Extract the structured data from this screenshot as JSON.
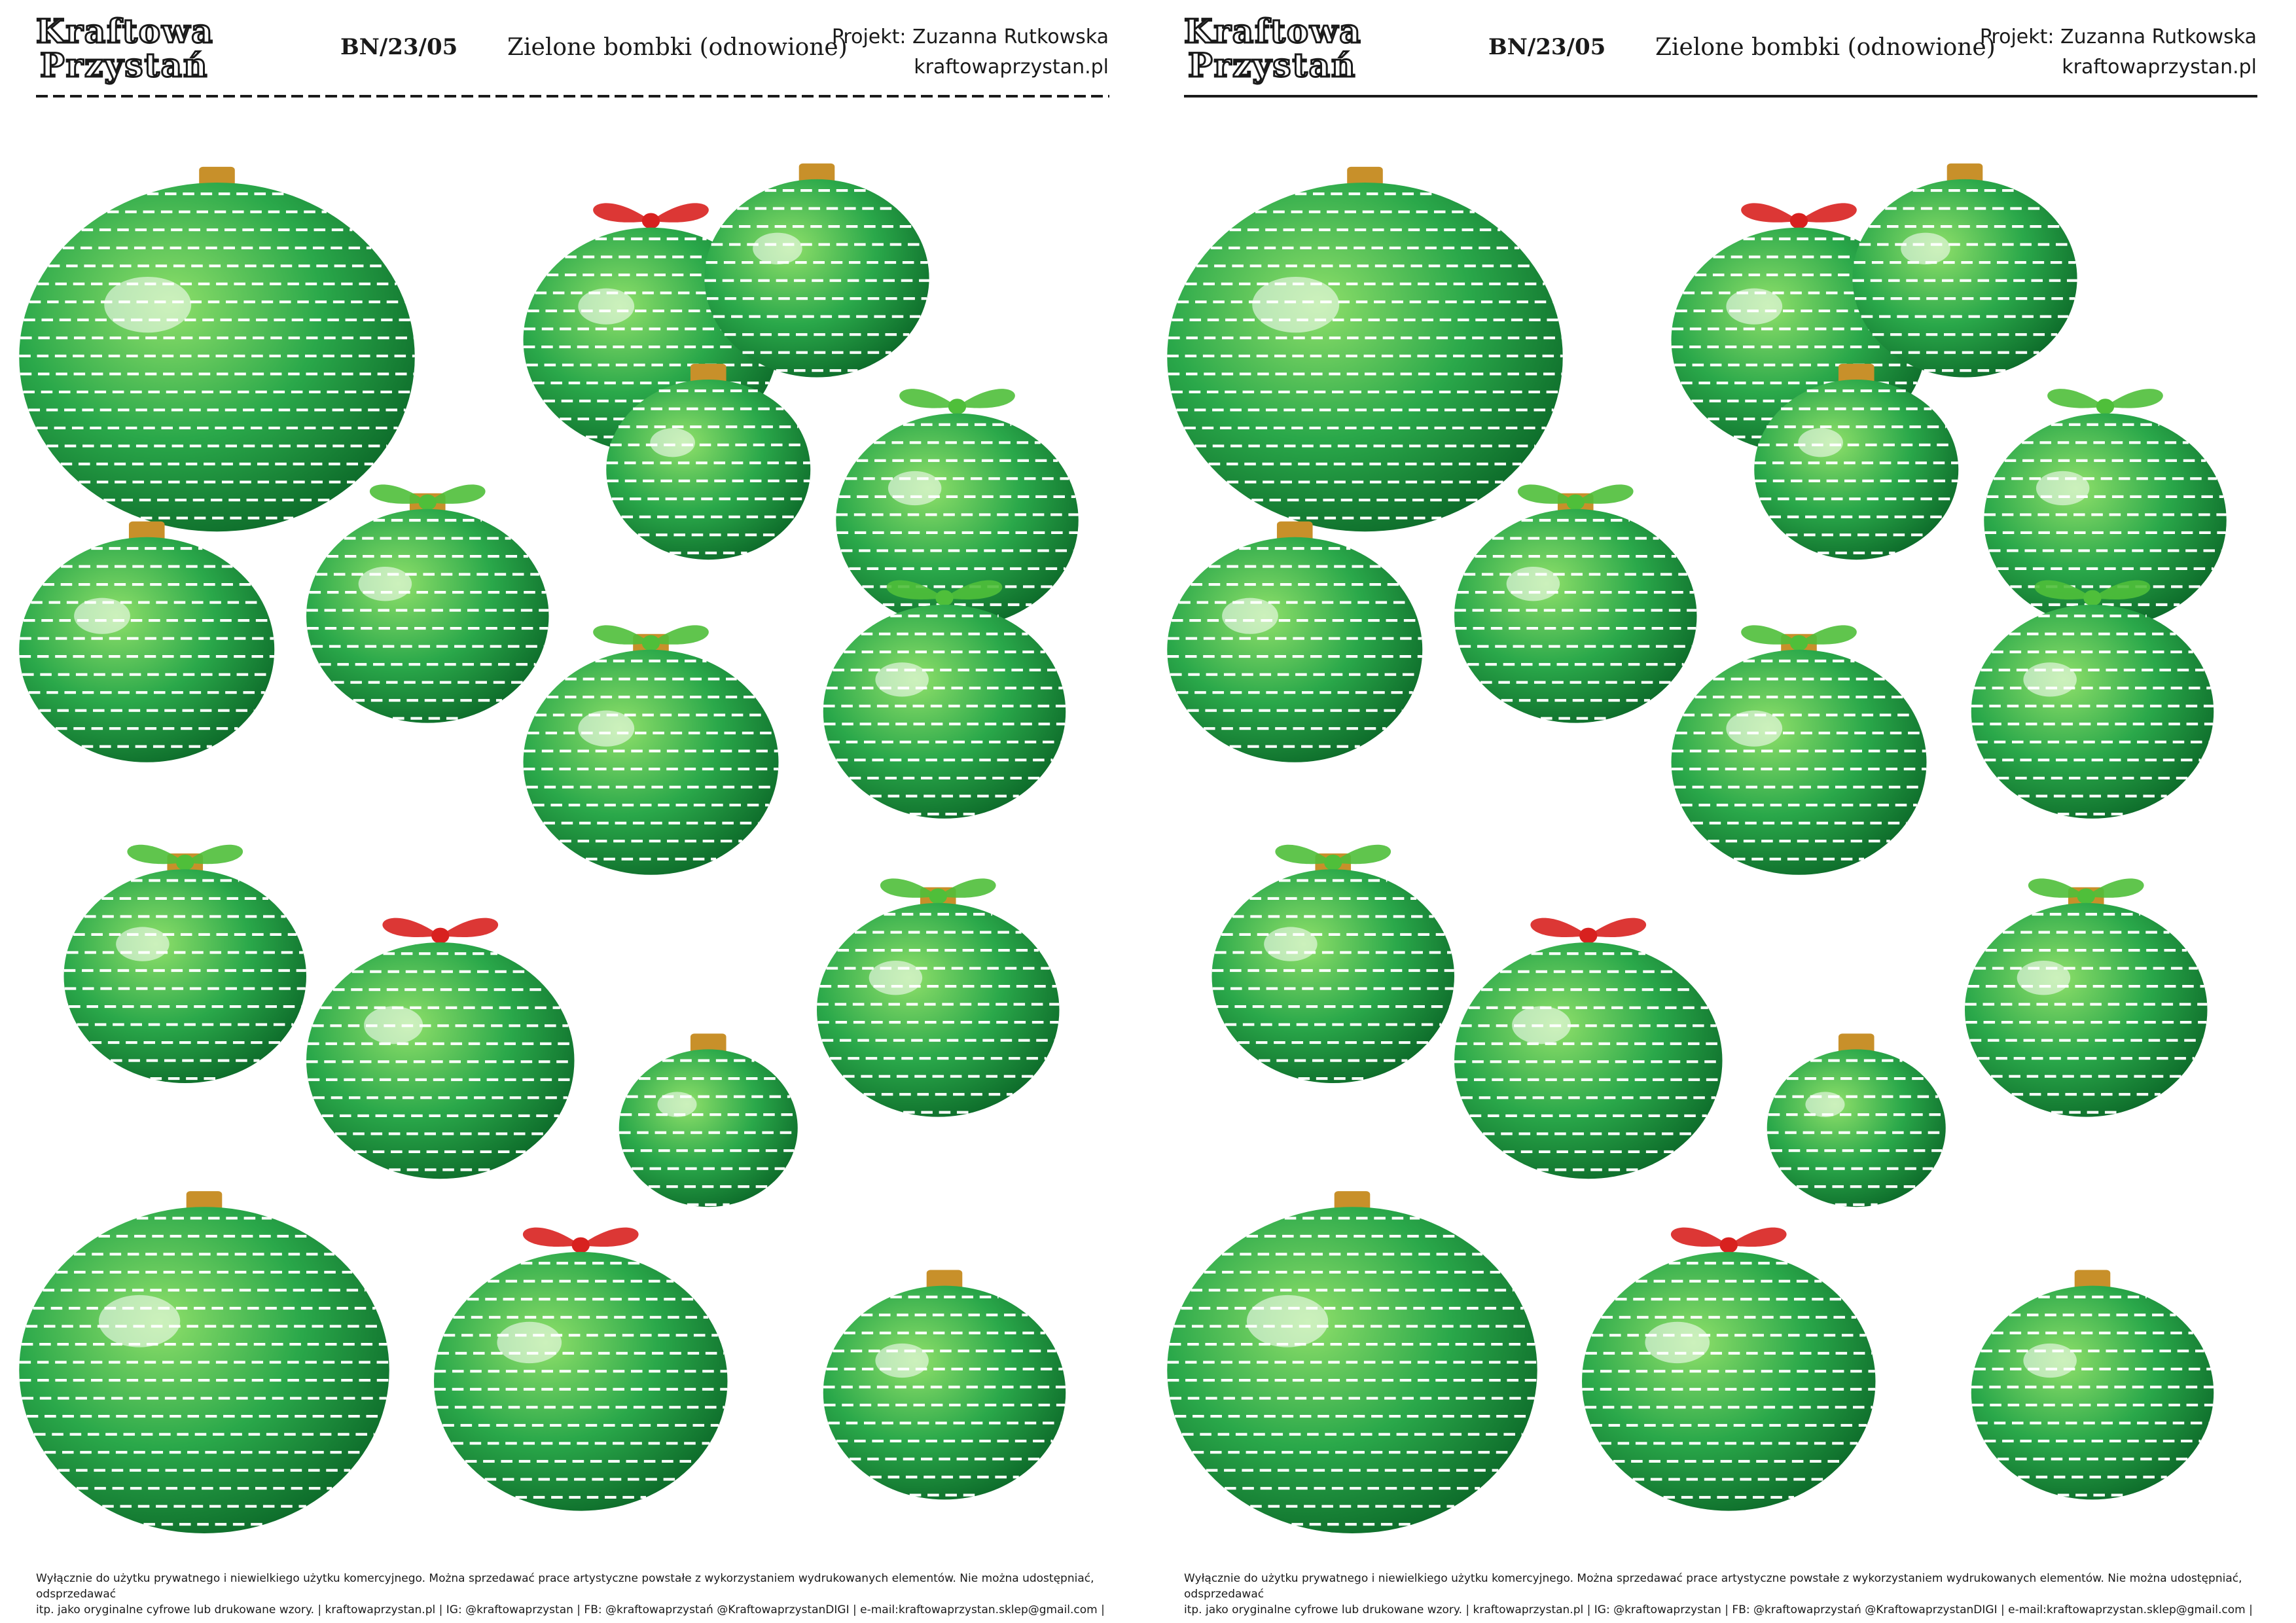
{
  "sheets": [
    {
      "logo": {
        "line1": "Kraftowa",
        "line2": "Przystań"
      },
      "code": "BN/23/05",
      "title": "Zielone bombki (odnowione)",
      "author": "Projekt: Zuzanna Rutkowska",
      "website": "kraftowaprzystan.pl",
      "footer_line1": "Wyłącznie do użytku prywatnego i niewielkiego użytku komercyjnego. Można sprzedawać prace artystyczne powstałe z wykorzystaniem wydrukowanych elementów. Nie można udostępniać, odsprzedawać",
      "footer_line2": "itp. jako oryginalne cyfrowe lub drukowane wzory.  | kraftowaprzystan.pl  | IG: @kraftowaprzystan  | FB: @kraftowaprzystań @KraftowaprzystanDIGI  | e-mail:kraftowaprzystan.sklep@gmail.com |"
    },
    {
      "logo": {
        "line1": "Kraftowa",
        "line2": "Przystań"
      },
      "code": "BN/23/05",
      "title": "Zielone bombki (odnowione)",
      "author": "Projekt: Zuzanna Rutkowska",
      "website": "kraftowaprzystan.pl",
      "footer_line1": "Wyłącznie do użytku prywatnego i niewielkiego użytku komercyjnego. Można sprzedawać prace artystyczne powstałe z wykorzystaniem wydrukowanych elementów. Nie można udostępniać, odsprzedawać",
      "footer_line2": "itp. jako oryginalne cyfrowe lub drukowane wzory.  | kraftowaprzystan.pl  | IG: @kraftowaprzystan  | FB: @kraftowaprzystań @KraftowaprzystanDIGI  | e-mail:kraftowaprzystan.sklep@gmail.com |"
    }
  ],
  "ornaments": [
    {
      "id": "o1",
      "bow": "none",
      "cap": true
    },
    {
      "id": "o2",
      "bow": "red",
      "cap": false
    },
    {
      "id": "o3",
      "bow": "none",
      "cap": true
    },
    {
      "id": "o4",
      "bow": "none",
      "cap": true
    },
    {
      "id": "o5",
      "bow": "green",
      "cap": false
    },
    {
      "id": "o6",
      "bow": "none",
      "cap": true
    },
    {
      "id": "o7",
      "bow": "green",
      "cap": true
    },
    {
      "id": "o8",
      "bow": "green",
      "cap": true
    },
    {
      "id": "o9",
      "bow": "green",
      "cap": false
    },
    {
      "id": "o10",
      "bow": "green",
      "cap": true
    },
    {
      "id": "o11",
      "bow": "red",
      "cap": false
    },
    {
      "id": "o12",
      "bow": "none",
      "cap": true
    },
    {
      "id": "o13",
      "bow": "green",
      "cap": true
    },
    {
      "id": "o14",
      "bow": "none",
      "cap": true
    },
    {
      "id": "o15",
      "bow": "red",
      "cap": false
    },
    {
      "id": "o16",
      "bow": "none",
      "cap": true
    }
  ],
  "colors": {
    "dark_green": "#0d6b2a",
    "mid_green": "#2aa84a",
    "light_green": "#8fe06a",
    "red_bow": "#d8211f",
    "gold_cap": "#c8902a",
    "ink": "#1a1a1a"
  }
}
